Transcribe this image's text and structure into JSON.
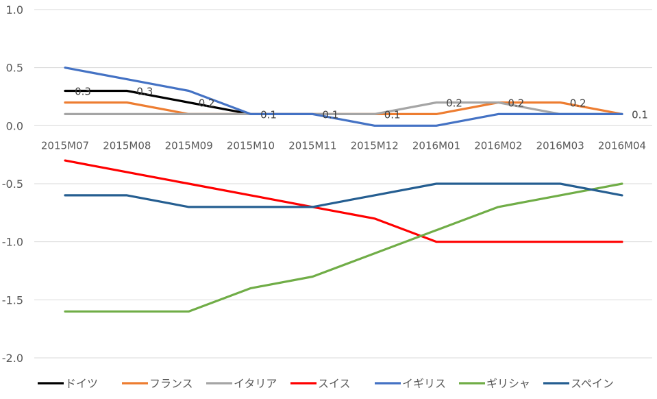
{
  "chart_data": {
    "type": "line",
    "title": "",
    "xlabel": "",
    "ylabel": "",
    "ylim": [
      -2.0,
      1.0
    ],
    "ytick_step": 0.5,
    "y_ticks": [
      "1.0",
      "0.5",
      "0.0",
      "-0.5",
      "-1.0",
      "-1.5",
      "-2.0"
    ],
    "grid": true,
    "legend_position": "bottom",
    "categories": [
      "2015M07",
      "2015M08",
      "2015M09",
      "2015M10",
      "2015M11",
      "2015M12",
      "2016M01",
      "2016M02",
      "2016M03",
      "2016M04"
    ],
    "series": [
      {
        "name": "ドイツ",
        "color": "#000000",
        "values": [
          0.3,
          0.3,
          0.2,
          0.1,
          null,
          null,
          null,
          null,
          null,
          null
        ]
      },
      {
        "name": "フランス",
        "color": "#ED7D31",
        "values": [
          0.2,
          0.2,
          0.1,
          0.1,
          0.1,
          0.1,
          0.1,
          0.2,
          0.2,
          0.1
        ]
      },
      {
        "name": "イタリア",
        "color": "#A5A5A5",
        "values": [
          0.1,
          0.1,
          0.1,
          0.1,
          0.1,
          0.1,
          0.2,
          0.2,
          0.1,
          0.1
        ]
      },
      {
        "name": "スイス",
        "color": "#FF0000",
        "values": [
          -0.3,
          -0.4,
          -0.5,
          -0.6,
          -0.7,
          -0.8,
          -1.0,
          -1.0,
          -1.0,
          -1.0
        ]
      },
      {
        "name": "イギリス",
        "color": "#4472C4",
        "values": [
          0.5,
          0.4,
          0.3,
          0.1,
          0.1,
          0.0,
          0.0,
          0.1,
          0.1,
          0.1
        ]
      },
      {
        "name": "ギリシャ",
        "color": "#70AD47",
        "values": [
          -1.6,
          -1.6,
          -1.6,
          -1.4,
          -1.3,
          -1.1,
          -0.9,
          -0.7,
          -0.6,
          -0.5
        ]
      },
      {
        "name": "スペイン",
        "color": "#255E91",
        "values": [
          -0.6,
          -0.6,
          -0.7,
          -0.7,
          -0.7,
          -0.6,
          -0.5,
          -0.5,
          -0.5,
          -0.6
        ]
      }
    ],
    "data_labels": [
      {
        "x": "2015M07",
        "y": 0.3,
        "text": "0.3"
      },
      {
        "x": "2015M08",
        "y": 0.3,
        "text": "0.3"
      },
      {
        "x": "2015M09",
        "y": 0.2,
        "text": "0.2"
      },
      {
        "x": "2015M10",
        "y": 0.1,
        "text": "0.1"
      },
      {
        "x": "2015M11",
        "y": 0.1,
        "text": "0.1"
      },
      {
        "x": "2015M12",
        "y": 0.1,
        "text": "0.1"
      },
      {
        "x": "2016M01",
        "y": 0.2,
        "text": "0.2"
      },
      {
        "x": "2016M02",
        "y": 0.2,
        "text": "0.2"
      },
      {
        "x": "2016M03",
        "y": 0.2,
        "text": "0.2"
      },
      {
        "x": "2016M04",
        "y": 0.1,
        "text": "0.1"
      }
    ],
    "colors": {
      "grid": "#D9D9D9",
      "text": "#595959",
      "data_label": "#404040"
    }
  }
}
